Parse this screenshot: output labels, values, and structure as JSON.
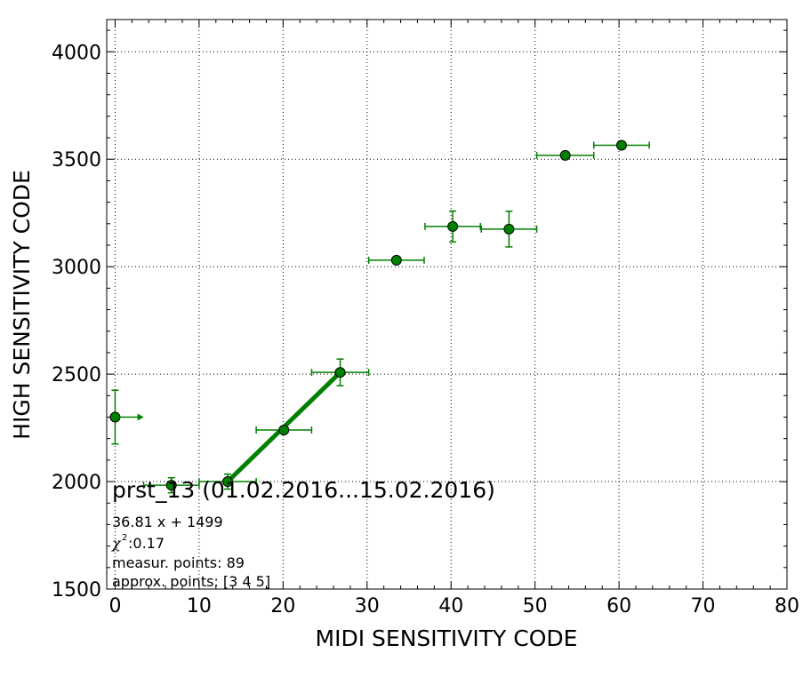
{
  "chart_data": {
    "type": "scatter",
    "xlabel": "MIDI SENSITIVITY CODE",
    "ylabel": "HIGH SENSITIVITY CODE",
    "xlim": [
      -1,
      80
    ],
    "ylim": [
      1500,
      4150
    ],
    "xticks": [
      "0",
      "10",
      "20",
      "30",
      "40",
      "50",
      "60",
      "70",
      "80"
    ],
    "yticks": [
      "1500",
      "2000",
      "2500",
      "3000",
      "3500",
      "4000"
    ],
    "grid": true,
    "marker_color": "#008000",
    "marker_edge_color": "#000000",
    "line_color": "#008000",
    "points": [
      {
        "x": 0.0,
        "y": 2300,
        "xerr": 0,
        "yerr": 125
      },
      {
        "x": 6.7,
        "y": 1983,
        "xerr": 3.3,
        "yerr": 35
      },
      {
        "x": 13.4,
        "y": 2000,
        "xerr": 3.4,
        "yerr": 35
      },
      {
        "x": 20.1,
        "y": 2240,
        "xerr": 3.3,
        "yerr": 15
      },
      {
        "x": 26.8,
        "y": 2508,
        "xerr": 3.4,
        "yerr": 62
      },
      {
        "x": 33.5,
        "y": 3030,
        "xerr": 3.3,
        "yerr": 15
      },
      {
        "x": 40.2,
        "y": 3187,
        "xerr": 3.3,
        "yerr": 72
      },
      {
        "x": 46.9,
        "y": 3175,
        "xerr": 3.3,
        "yerr": 83
      },
      {
        "x": 53.6,
        "y": 3518,
        "xerr": 3.4,
        "yerr": 15
      },
      {
        "x": 60.3,
        "y": 3565,
        "xerr": 3.3,
        "yerr": 15
      }
    ],
    "arrow": {
      "x_start": 0.0,
      "x_end": 3.4,
      "y": 2300
    },
    "fit_line": {
      "x": [
        13.4,
        26.8
      ],
      "y": [
        2000,
        2508
      ]
    },
    "annotations": {
      "title": "prst_13 (01.02.2016...15.02.2016)",
      "equation": "36.81 x + 1499",
      "chi_symbol": "χ",
      "chi_sup": "2",
      "chi_value": " :0.17",
      "measur_points": "measur. points: 89",
      "approx_points": "approx. points: [3 4 5]"
    }
  }
}
